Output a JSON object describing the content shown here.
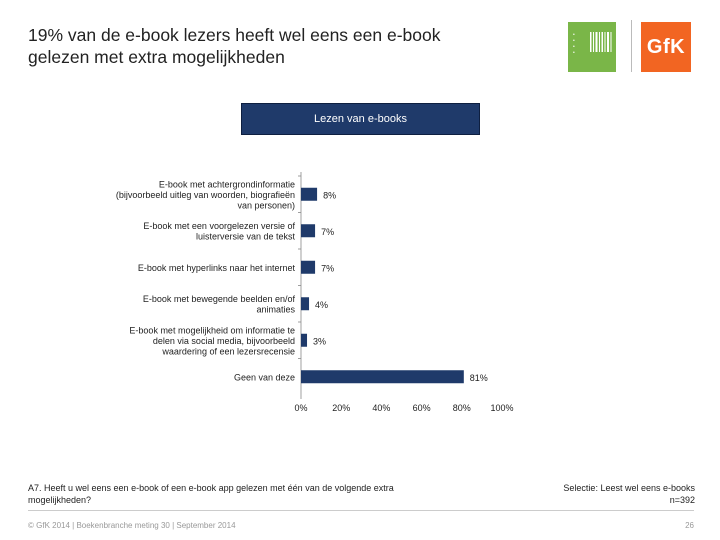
{
  "title": {
    "line1": "19% van de e-book lezers heeft wel eens een e-book",
    "line2": "gelezen met extra mogelijkheden"
  },
  "logo": {
    "brand": "GfK",
    "colors": {
      "left": "#7ab648",
      "right": "#f26522"
    }
  },
  "header_box": {
    "label": "Lezen van e-books",
    "color": "#1f3a6a"
  },
  "chart_data": {
    "type": "bar",
    "orientation": "horizontal",
    "categories": [
      [
        "E-book met achtergrondinformatie",
        "(bijvoorbeeld uitleg van woorden, biografieën",
        "van personen)"
      ],
      [
        "E-book met een voorgelezen versie of",
        "luisterversie van de tekst"
      ],
      [
        "E-book met hyperlinks naar het internet"
      ],
      [
        "E-book met bewegende beelden en/of",
        "animaties"
      ],
      [
        "E-book met mogelijkheid om informatie te",
        "delen via social media, bijvoorbeeld",
        "waardering of een lezersrecensie"
      ],
      [
        "Geen van deze"
      ]
    ],
    "values": [
      8,
      7,
      7,
      4,
      3,
      81
    ],
    "value_labels": [
      "8%",
      "7%",
      "7%",
      "4%",
      "3%",
      "81%"
    ],
    "xlim": [
      0,
      100
    ],
    "xticks": [
      "0%",
      "20%",
      "40%",
      "60%",
      "80%",
      "100%"
    ],
    "bar_color": "#1f3a6a",
    "grid": false,
    "legend": "none"
  },
  "footnote": {
    "line1": "A7. Heeft u wel eens een e-book of een e-book app gelezen met één van de volgende extra",
    "line2": "mogelijkheden?"
  },
  "selectie": {
    "line1": "Selectie: Leest wel eens e-books",
    "line2": "n=392"
  },
  "footer": {
    "copyright": "© GfK 2014 | Boekenbranche meting 30 | September 2014",
    "page": "26"
  }
}
